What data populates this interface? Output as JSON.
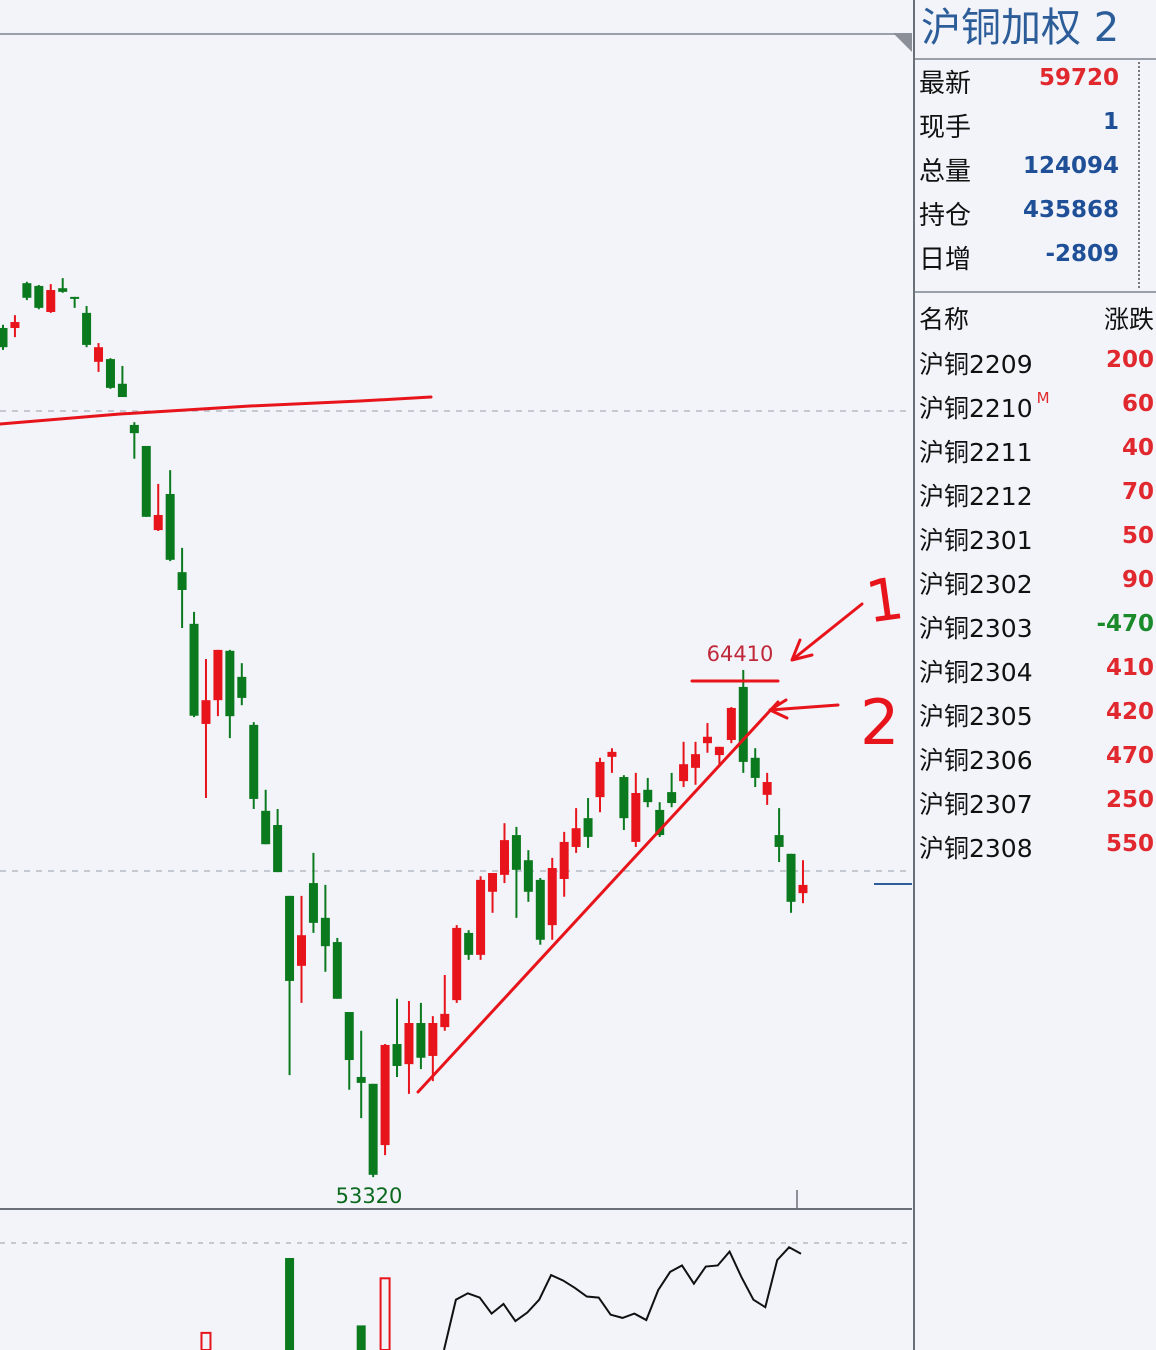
{
  "header": {
    "title": "沪铜加权 2"
  },
  "quote": [
    {
      "label": "最新",
      "value": "59720",
      "color": "#e0282e"
    },
    {
      "label": "现手",
      "value": "1",
      "color": "#1e4f97"
    },
    {
      "label": "总量",
      "value": "124094",
      "color": "#1e4f97"
    },
    {
      "label": "持仓",
      "value": "435868",
      "color": "#1e4f97"
    },
    {
      "label": "日增",
      "value": "-2809",
      "color": "#1e4f97"
    }
  ],
  "contracts": {
    "headers": {
      "name": "名称",
      "change": "涨跌"
    },
    "rows": [
      {
        "name": "沪铜2209",
        "change": "200",
        "badge": "",
        "color": "#e0282e"
      },
      {
        "name": "沪铜2210",
        "change": "60",
        "badge": "M",
        "color": "#e0282e"
      },
      {
        "name": "沪铜2211",
        "change": "40",
        "badge": "",
        "color": "#e0282e"
      },
      {
        "name": "沪铜2212",
        "change": "70",
        "badge": "",
        "color": "#e0282e"
      },
      {
        "name": "沪铜2301",
        "change": "50",
        "badge": "",
        "color": "#e0282e"
      },
      {
        "name": "沪铜2302",
        "change": "90",
        "badge": "",
        "color": "#e0282e"
      },
      {
        "name": "沪铜2303",
        "change": "-470",
        "badge": "",
        "color": "#1a8a2a"
      },
      {
        "name": "沪铜2304",
        "change": "410",
        "badge": "",
        "color": "#e0282e"
      },
      {
        "name": "沪铜2305",
        "change": "420",
        "badge": "",
        "color": "#e0282e"
      },
      {
        "name": "沪铜2306",
        "change": "470",
        "badge": "",
        "color": "#e0282e"
      },
      {
        "name": "沪铜2307",
        "change": "250",
        "badge": "",
        "color": "#e0282e"
      },
      {
        "name": "沪铜2308",
        "change": "550",
        "badge": "",
        "color": "#e0282e"
      }
    ]
  },
  "colors": {
    "up": "#e8141c",
    "down": "#0b7a1e",
    "annotation": "#e8141c",
    "background": "#f2f4f9"
  },
  "chart_data": {
    "type": "candlestick",
    "ohlc": [
      [
        71890,
        71960,
        71410,
        71470
      ],
      [
        71890,
        72170,
        71690,
        72020
      ],
      [
        72870,
        72900,
        72500,
        72550
      ],
      [
        72810,
        72830,
        72300,
        72330
      ],
      [
        72240,
        72850,
        72220,
        72720
      ],
      [
        72760,
        72980,
        72660,
        72680
      ],
      [
        72570,
        72570,
        72330,
        72550
      ],
      [
        72220,
        72370,
        71470,
        71520
      ],
      [
        71150,
        71560,
        70930,
        71470
      ],
      [
        71210,
        71230,
        70560,
        70580
      ],
      [
        70670,
        71060,
        70380,
        70380
      ],
      [
        69770,
        69830,
        69030,
        69590
      ],
      [
        69310,
        69310,
        67760,
        67760
      ],
      [
        67470,
        68480,
        67450,
        67800
      ],
      [
        68260,
        68780,
        66790,
        66820
      ],
      [
        66550,
        67080,
        65330,
        66160
      ],
      [
        65420,
        65680,
        63380,
        63410
      ],
      [
        63230,
        64650,
        61610,
        63750
      ],
      [
        63750,
        64850,
        63400,
        64850
      ],
      [
        64830,
        64850,
        62920,
        63400
      ],
      [
        64260,
        64560,
        63640,
        63800
      ],
      [
        63210,
        63270,
        61370,
        61590
      ],
      [
        61330,
        61790,
        60600,
        60600
      ],
      [
        61020,
        61370,
        59990,
        59990
      ],
      [
        59470,
        59470,
        55550,
        57610
      ],
      [
        57940,
        59470,
        57130,
        58610
      ],
      [
        59750,
        60410,
        58660,
        58880
      ],
      [
        58990,
        59710,
        57810,
        58370
      ],
      [
        58460,
        58550,
        57220,
        57220
      ],
      [
        56930,
        56930,
        55230,
        55880
      ],
      [
        55510,
        56520,
        54610,
        55380
      ],
      [
        55360,
        55360,
        53320,
        53370
      ],
      [
        54020,
        56230,
        53800,
        56210
      ],
      [
        56230,
        57220,
        55510,
        55750
      ],
      [
        55790,
        57170,
        55140,
        56690
      ],
      [
        56690,
        57130,
        55680,
        55930
      ],
      [
        55970,
        56840,
        55420,
        56690
      ],
      [
        56600,
        57740,
        56520,
        56890
      ],
      [
        57190,
        58830,
        57130,
        58770
      ],
      [
        58660,
        58720,
        58070,
        58180
      ],
      [
        58180,
        59900,
        58070,
        59820
      ],
      [
        59560,
        59970,
        59100,
        59970
      ],
      [
        59930,
        61060,
        59750,
        60690
      ],
      [
        60800,
        60980,
        58990,
        60040
      ],
      [
        60250,
        60470,
        59340,
        59560
      ],
      [
        59820,
        59860,
        58400,
        58510
      ],
      [
        58830,
        60300,
        58510,
        60080
      ],
      [
        59840,
        60870,
        59450,
        60650
      ],
      [
        60540,
        61390,
        60410,
        60950
      ],
      [
        61170,
        61610,
        60520,
        60760
      ],
      [
        61630,
        62490,
        61300,
        62400
      ],
      [
        62510,
        62700,
        62160,
        62620
      ],
      [
        62070,
        62110,
        60910,
        61170
      ],
      [
        60650,
        62160,
        60540,
        61720
      ],
      [
        61790,
        62050,
        61410,
        61520
      ],
      [
        61350,
        61520,
        60760,
        60800
      ],
      [
        61740,
        62160,
        61410,
        61500
      ],
      [
        61980,
        62840,
        61850,
        62350
      ],
      [
        62270,
        62840,
        61900,
        62570
      ],
      [
        62810,
        63250,
        62600,
        62950
      ],
      [
        62550,
        62730,
        62290,
        62730
      ],
      [
        62880,
        63600,
        62810,
        63580
      ],
      [
        64040,
        64410,
        62160,
        62400
      ],
      [
        62490,
        62700,
        61850,
        62050
      ],
      [
        61680,
        62160,
        61460,
        61960
      ],
      [
        60800,
        61390,
        60210,
        60540
      ],
      [
        60390,
        60390,
        59100,
        59340
      ],
      [
        59530,
        60250,
        59310,
        59710
      ]
    ],
    "labels": {
      "high": "64410",
      "low": "53320"
    },
    "annotations": {
      "arrow_1": "1",
      "arrow_2": "2"
    },
    "lower_panel": {
      "volume_bars": [
        {
          "index": 17,
          "value": 16,
          "color": "up"
        },
        {
          "index": 24,
          "value": 86,
          "color": "down"
        },
        {
          "index": 30,
          "value": 23,
          "color": "down"
        },
        {
          "index": 32,
          "value": 67,
          "color": "up"
        }
      ],
      "line": [
        0,
        47,
        53,
        49,
        34,
        43,
        27,
        35,
        47,
        70,
        65,
        58,
        50,
        49,
        33,
        30,
        34,
        28,
        56,
        73,
        79,
        62,
        78,
        79,
        92,
        68,
        47,
        40,
        84,
        96,
        90
      ]
    }
  }
}
